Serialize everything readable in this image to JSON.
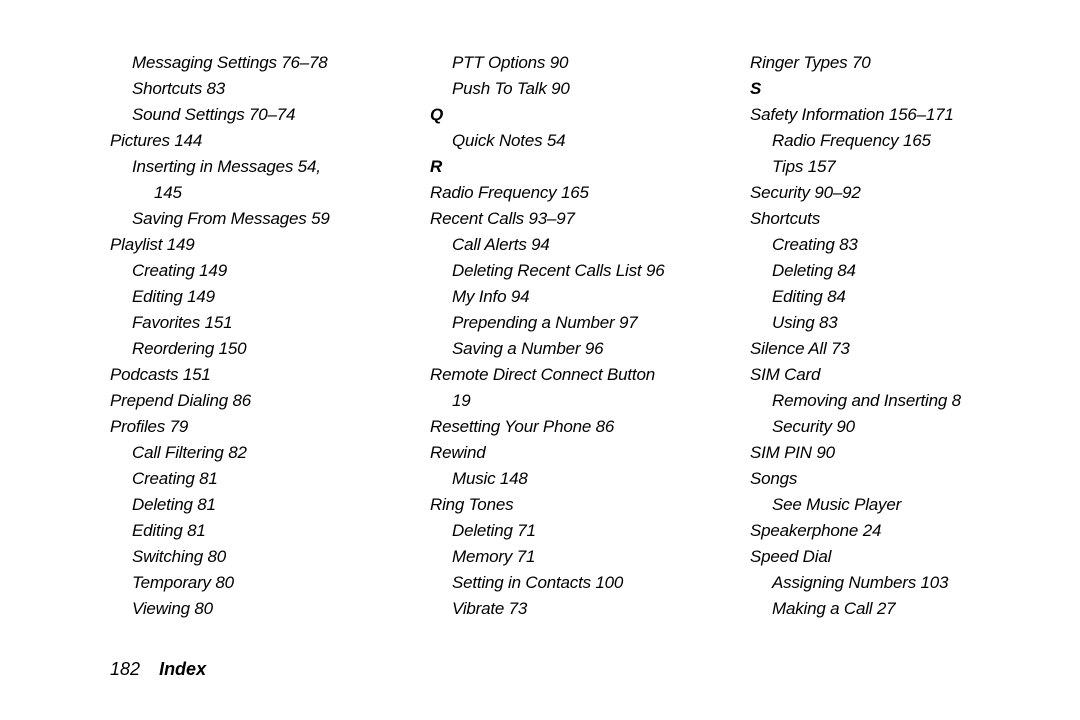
{
  "columns": [
    {
      "lines": [
        {
          "cls": "l1",
          "text": "Messaging Settings 76–78"
        },
        {
          "cls": "l1",
          "text": "Shortcuts 83"
        },
        {
          "cls": "l1",
          "text": "Sound Settings 70–74"
        },
        {
          "cls": "l0",
          "text": "Pictures 144"
        },
        {
          "cls": "l1",
          "text": "Inserting in Messages 54,"
        },
        {
          "cls": "l2",
          "text": "145"
        },
        {
          "cls": "l1",
          "text": "Saving From Messages 59"
        },
        {
          "cls": "l0",
          "text": "Playlist 149"
        },
        {
          "cls": "l1",
          "text": "Creating 149"
        },
        {
          "cls": "l1",
          "text": "Editing 149"
        },
        {
          "cls": "l1",
          "text": "Favorites 151"
        },
        {
          "cls": "l1",
          "text": "Reordering 150"
        },
        {
          "cls": "l0",
          "text": "Podcasts 151"
        },
        {
          "cls": "l0",
          "text": "Prepend Dialing 86"
        },
        {
          "cls": "l0",
          "text": "Profiles 79"
        },
        {
          "cls": "l1",
          "text": "Call Filtering 82"
        },
        {
          "cls": "l1",
          "text": "Creating 81"
        },
        {
          "cls": "l1",
          "text": "Deleting 81"
        },
        {
          "cls": "l1",
          "text": "Editing 81"
        },
        {
          "cls": "l1",
          "text": "Switching 80"
        },
        {
          "cls": "l1",
          "text": "Temporary 80"
        },
        {
          "cls": "l1",
          "text": "Viewing 80"
        }
      ]
    },
    {
      "lines": [
        {
          "cls": "l1",
          "text": "PTT Options 90"
        },
        {
          "cls": "l1",
          "text": "Push To Talk 90"
        },
        {
          "cls": "letter",
          "text": "Q"
        },
        {
          "cls": "l1",
          "text": "Quick Notes 54"
        },
        {
          "cls": "letter",
          "text": "R"
        },
        {
          "cls": "l0",
          "text": "Radio Frequency 165"
        },
        {
          "cls": "l0",
          "text": "Recent Calls 93–97"
        },
        {
          "cls": "l1",
          "text": "Call Alerts 94"
        },
        {
          "cls": "l1",
          "text": "Deleting Recent Calls List 96"
        },
        {
          "cls": "l1",
          "text": "My Info 94"
        },
        {
          "cls": "l1",
          "text": "Prepending a Number 97"
        },
        {
          "cls": "l1",
          "text": "Saving a Number 96"
        },
        {
          "cls": "l0",
          "text": "Remote Direct Connect Button"
        },
        {
          "cls": "l1",
          "text": "19"
        },
        {
          "cls": "l0",
          "text": "Resetting Your Phone 86"
        },
        {
          "cls": "l0",
          "text": "Rewind"
        },
        {
          "cls": "l1",
          "text": "Music 148"
        },
        {
          "cls": "l0",
          "text": "Ring Tones"
        },
        {
          "cls": "l1",
          "text": "Deleting 71"
        },
        {
          "cls": "l1",
          "text": "Memory 71"
        },
        {
          "cls": "l1",
          "text": "Setting in Contacts 100"
        },
        {
          "cls": "l1",
          "text": "Vibrate 73"
        }
      ]
    },
    {
      "lines": [
        {
          "cls": "l0",
          "text": "Ringer Types 70"
        },
        {
          "cls": "letter",
          "text": "S"
        },
        {
          "cls": "l0",
          "text": "Safety Information 156–171"
        },
        {
          "cls": "l1",
          "text": "Radio Frequency 165"
        },
        {
          "cls": "l1",
          "text": "Tips 157"
        },
        {
          "cls": "l0",
          "text": "Security 90–92"
        },
        {
          "cls": "l0",
          "text": "Shortcuts"
        },
        {
          "cls": "l1",
          "text": "Creating 83"
        },
        {
          "cls": "l1",
          "text": "Deleting 84"
        },
        {
          "cls": "l1",
          "text": "Editing 84"
        },
        {
          "cls": "l1",
          "text": "Using 83"
        },
        {
          "cls": "l0",
          "text": "Silence All 73"
        },
        {
          "cls": "l0",
          "text": "SIM Card"
        },
        {
          "cls": "l1",
          "text": "Removing and Inserting 8"
        },
        {
          "cls": "l1",
          "text": "Security 90"
        },
        {
          "cls": "l0",
          "text": "SIM PIN 90"
        },
        {
          "cls": "l0",
          "text": "Songs"
        },
        {
          "cls": "l1",
          "text": "See Music Player"
        },
        {
          "cls": "l0",
          "text": "Speakerphone 24"
        },
        {
          "cls": "l0",
          "text": "Speed Dial"
        },
        {
          "cls": "l1",
          "text": "Assigning Numbers 103"
        },
        {
          "cls": "l1",
          "text": "Making a Call 27"
        }
      ]
    }
  ],
  "footer": {
    "page_number": "182",
    "title": "Index"
  }
}
